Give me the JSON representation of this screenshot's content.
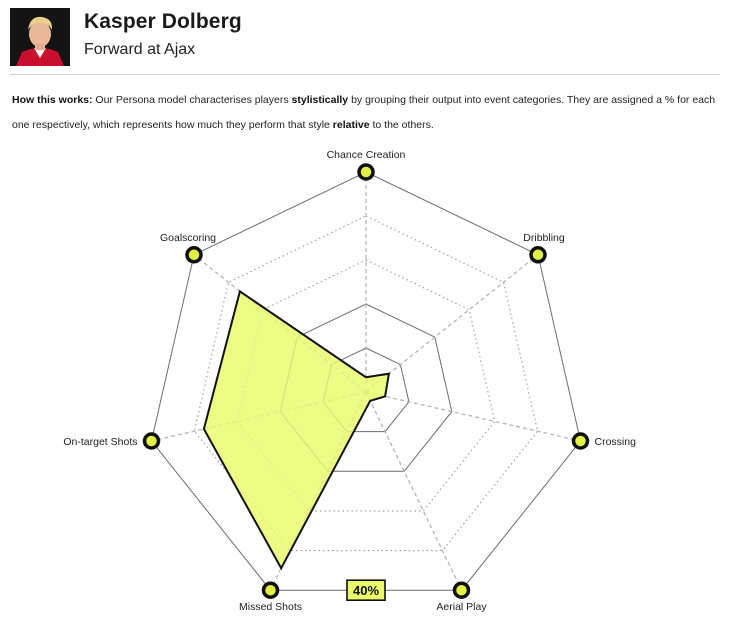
{
  "player": {
    "name": "Kasper Dolberg",
    "role": "Forward at Ajax"
  },
  "explainer": {
    "lead": "How this works:",
    "part1": " Our Persona model characterises players ",
    "bold1": "stylistically",
    "part2": " by grouping their output into event categories. They are assigned a % for each one respectively, which represents how much they perform that style ",
    "bold2": "relative",
    "part3": " to the others."
  },
  "colors": {
    "accent": "#e8fb6a",
    "marker_fill": "#e3f046",
    "outline": "#111111",
    "grid_solid": "#6b6b6b",
    "grid_dotted": "#9a9a9a",
    "grid_dashed": "#b5b5b5"
  },
  "chart_data": {
    "type": "radar",
    "axes": [
      "Chance Creation",
      "Dribbling",
      "Crossing",
      "Aerial Play",
      "Missed Shots",
      "On-target Shots",
      "Goalscoring"
    ],
    "values": [
      3,
      6,
      4,
      2,
      40,
      34,
      33
    ],
    "rlim": [
      0,
      45
    ],
    "grid": true,
    "highlight": {
      "axis": "Missed Shots",
      "label": "40%"
    }
  }
}
